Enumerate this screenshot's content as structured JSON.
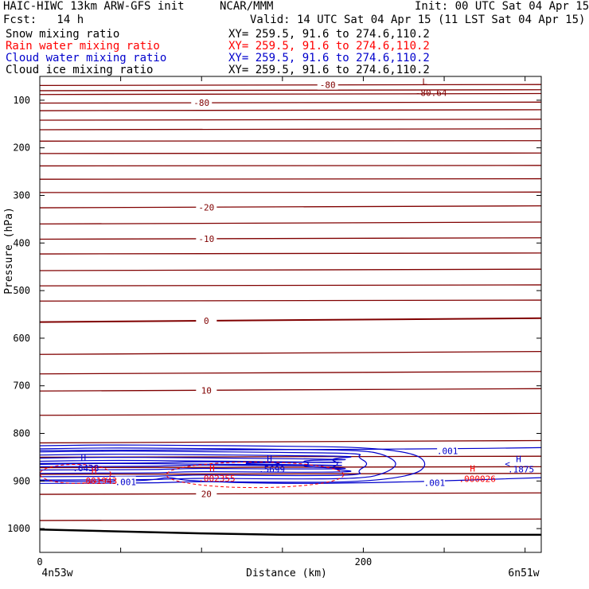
{
  "header": {
    "model": "HAIC-HIWC 13km ARW-GFS init",
    "org": "NCAR/MMM",
    "init": "Init: 00 UTC Sat 04 Apr 15",
    "fcst": "Fcst:   14 h",
    "valid": "Valid: 14 UTC Sat 04 Apr 15 (11 LST Sat 04 Apr 15)"
  },
  "fields": [
    {
      "name": "Snow mixing ratio",
      "xy": "XY= 259.5, 91.6 to 274.6,110.2",
      "color": "#000000"
    },
    {
      "name": "Rain water mixing ratio",
      "xy": "XY= 259.5, 91.6 to 274.6,110.2",
      "color": "#ff0000"
    },
    {
      "name": "Cloud water mixing ratio",
      "xy": "XY= 259.5, 91.6 to 274.6,110.2",
      "color": "#0000cc"
    },
    {
      "name": "Cloud ice mixing ratio",
      "xy": "XY= 259.5, 91.6 to 274.6,110.2",
      "color": "#000000"
    }
  ],
  "colors": {
    "temperature": "#800000",
    "cloud_water": "#0000cc",
    "rain_water": "#ff0000",
    "terrain": "#000000"
  },
  "chart_data": {
    "type": "line",
    "xlabel": "Distance (km)",
    "ylabel": "Pressure (hPa)",
    "xlim": [
      0,
      310
    ],
    "ylim": [
      1050,
      50
    ],
    "x_ticks": [
      0,
      50,
      100,
      150,
      200,
      250,
      300
    ],
    "x_tick_labels": [
      "0",
      "",
      "",
      "",
      "200",
      "",
      ""
    ],
    "y_ticks": [
      100,
      200,
      300,
      400,
      500,
      600,
      700,
      800,
      900,
      1000
    ],
    "y_tick_labels": [
      "100",
      "200",
      "300",
      "400",
      "500",
      "600",
      "700",
      "800",
      "900",
      "1000"
    ],
    "endpoint_labels": {
      "left": "4n53w",
      "right": "6n51w"
    },
    "temperature_contours": [
      {
        "label": "-80",
        "p_left": 69,
        "p_right": 67
      },
      {
        "p_left": 80,
        "p_right": 78
      },
      {
        "p_left": 88,
        "p_right": 86
      },
      {
        "label": "-80",
        "p_left": 106,
        "p_right": 104
      },
      {
        "p_left": 122,
        "p_right": 120
      },
      {
        "p_left": 142,
        "p_right": 140
      },
      {
        "p_left": 162,
        "p_right": 160
      },
      {
        "p_left": 186,
        "p_right": 185
      },
      {
        "p_left": 212,
        "p_right": 211
      },
      {
        "p_left": 238,
        "p_right": 237
      },
      {
        "p_left": 266,
        "p_right": 265
      },
      {
        "p_left": 294,
        "p_right": 293
      },
      {
        "label": "-20",
        "p_left": 326,
        "p_right": 322
      },
      {
        "p_left": 360,
        "p_right": 356
      },
      {
        "label": "-10",
        "p_left": 392,
        "p_right": 389
      },
      {
        "p_left": 423,
        "p_right": 421
      },
      {
        "p_left": 458,
        "p_right": 455
      },
      {
        "p_left": 490,
        "p_right": 488
      },
      {
        "p_left": 522,
        "p_right": 520
      },
      {
        "label": "0",
        "p_left": 566,
        "p_right": 558
      },
      {
        "p_left": 634,
        "p_right": 628
      },
      {
        "p_left": 675,
        "p_right": 670
      },
      {
        "label": "10",
        "p_left": 711,
        "p_right": 706
      },
      {
        "p_left": 762,
        "p_right": 758
      },
      {
        "p_left": 820,
        "p_right": 815
      },
      {
        "p_left": 850,
        "p_right": 848
      },
      {
        "p_left": 872,
        "p_right": 870
      },
      {
        "p_left": 886,
        "p_right": 884
      },
      {
        "label": "20",
        "p_left": 928,
        "p_right": 925
      },
      {
        "p_left": 983,
        "p_right": 980
      }
    ],
    "temperature_extrema": [
      {
        "type": "L",
        "value": "-80.64",
        "x": 238,
        "p": 78
      }
    ],
    "cloud_water_labels": [
      {
        "text": ".001",
        "x": 252,
        "p": 837
      },
      {
        "text": ".001",
        "x": 53,
        "p": 902
      },
      {
        "text": ".001",
        "x": 244,
        "p": 904
      }
    ],
    "cloud_water_maxima": [
      {
        "type": "H",
        "value": ".6438",
        "x": 27,
        "p": 864
      },
      {
        "type": "H",
        "value": ".5699",
        "x": 142,
        "p": 867
      },
      {
        "type": "H",
        "value": ".1875",
        "x": 296,
        "p": 867
      }
    ],
    "rain_water_maxima": [
      {
        "type": "H",
        "value": ".001943",
        "x": 35,
        "p": 891
      },
      {
        "type": "H",
        "value": ".002355",
        "x": 108,
        "p": 886
      },
      {
        "type": "H",
        "value": ".000026",
        "x": 269,
        "p": 887
      }
    ],
    "terrain_p": [
      1002,
      1006,
      1010,
      1013,
      1013,
      1013,
      1013
    ]
  }
}
